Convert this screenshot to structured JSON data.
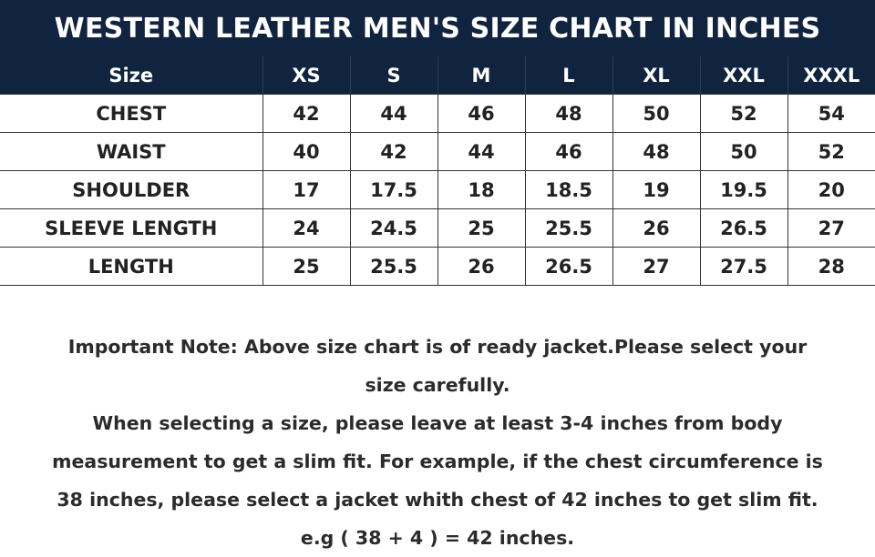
{
  "title": "WESTERN LEATHER MEN'S SIZE CHART IN INCHES",
  "table": {
    "headers": [
      "Size",
      "XS",
      "S",
      "M",
      "L",
      "XL",
      "XXL",
      "XXXL"
    ],
    "rows": [
      [
        "CHEST",
        "42",
        "44",
        "46",
        "48",
        "50",
        "52",
        "54"
      ],
      [
        "WAIST",
        "40",
        "42",
        "44",
        "46",
        "48",
        "50",
        "52"
      ],
      [
        "SHOULDER",
        "17",
        "17.5",
        "18",
        "18.5",
        "19",
        "19.5",
        "20"
      ],
      [
        "SLEEVE LENGTH",
        "24",
        "24.5",
        "25",
        "25.5",
        "26",
        "26.5",
        "27"
      ],
      [
        "LENGTH",
        "25",
        "25.5",
        "26",
        "26.5",
        "27",
        "27.5",
        "28"
      ]
    ]
  },
  "note": {
    "lines": [
      "Important Note: Above size chart is of ready jacket.Please select your",
      "size carefully.",
      "When selecting a size, please leave at least 3-4 inches from body",
      "measurement to get a slim fit. For example, if the chest circumference is",
      "38 inches, please select a jacket whith chest of 42 inches to get slim fit.",
      "e.g ( 38 + 4 ) = 42 inches."
    ]
  },
  "colors": {
    "header_bg": "#10233f",
    "header_text": "#ffffff",
    "body_text": "#222222"
  }
}
